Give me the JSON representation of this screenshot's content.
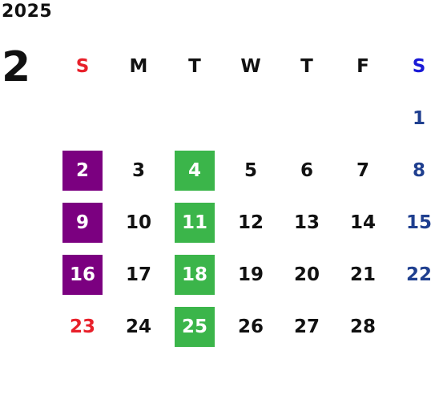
{
  "year": "2025",
  "month": "2",
  "colors": {
    "sunday": "#e8202a",
    "saturday_header": "#1a1ad6",
    "saturday": "#1f3f8f",
    "weekday": "#111111",
    "highlight_purple": "#7b0080",
    "highlight_green": "#3bb54a"
  },
  "weekdays": [
    "S",
    "M",
    "T",
    "W",
    "T",
    "F",
    "S"
  ],
  "weeks": [
    [
      "",
      "",
      "",
      "",
      "",
      "",
      "1"
    ],
    [
      "2",
      "3",
      "4",
      "5",
      "6",
      "7",
      "8"
    ],
    [
      "9",
      "10",
      "11",
      "12",
      "13",
      "14",
      "15"
    ],
    [
      "16",
      "17",
      "18",
      "19",
      "20",
      "21",
      "22"
    ],
    [
      "23",
      "24",
      "25",
      "26",
      "27",
      "28",
      ""
    ]
  ],
  "highlights": {
    "purple": [
      "2",
      "9",
      "16"
    ],
    "green": [
      "4",
      "11",
      "18",
      "25"
    ]
  }
}
